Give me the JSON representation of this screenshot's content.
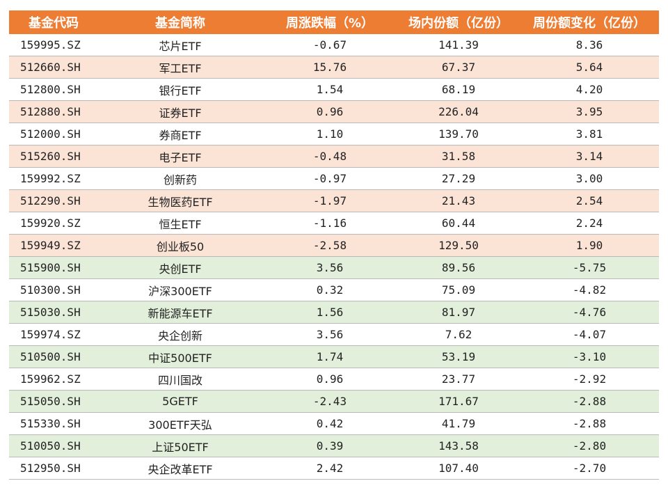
{
  "table": {
    "headers": [
      "基金代码",
      "基金简称",
      "周涨跌幅（%）",
      "场内份额（亿份）",
      "周份额变化（亿份）"
    ],
    "colors": {
      "header_bg": "#ee7d34",
      "inflow_row": "#fbe3d6",
      "outflow_row": "#e2efda"
    },
    "rows": [
      {
        "code": "159995.SZ",
        "name": "芯片ETF",
        "weekly_change": "-0.67",
        "shares": "141.39",
        "share_change": "8.36",
        "style": "plain"
      },
      {
        "code": "512660.SH",
        "name": "军工ETF",
        "weekly_change": "15.76",
        "shares": "67.37",
        "share_change": "5.64",
        "style": "up"
      },
      {
        "code": "512800.SH",
        "name": "银行ETF",
        "weekly_change": "1.54",
        "shares": "68.19",
        "share_change": "4.20",
        "style": "plain"
      },
      {
        "code": "512880.SH",
        "name": "证券ETF",
        "weekly_change": "0.96",
        "shares": "226.04",
        "share_change": "3.95",
        "style": "up"
      },
      {
        "code": "512000.SH",
        "name": "券商ETF",
        "weekly_change": "1.10",
        "shares": "139.70",
        "share_change": "3.81",
        "style": "plain"
      },
      {
        "code": "515260.SH",
        "name": "电子ETF",
        "weekly_change": "-0.48",
        "shares": "31.58",
        "share_change": "3.14",
        "style": "up"
      },
      {
        "code": "159992.SZ",
        "name": "创新药",
        "weekly_change": "-0.97",
        "shares": "27.29",
        "share_change": "3.00",
        "style": "plain"
      },
      {
        "code": "512290.SH",
        "name": "生物医药ETF",
        "weekly_change": "-1.97",
        "shares": "21.43",
        "share_change": "2.54",
        "style": "up"
      },
      {
        "code": "159920.SZ",
        "name": "恒生ETF",
        "weekly_change": "-1.16",
        "shares": "60.44",
        "share_change": "2.24",
        "style": "plain"
      },
      {
        "code": "159949.SZ",
        "name": "创业板50",
        "weekly_change": "-2.58",
        "shares": "129.50",
        "share_change": "1.90",
        "style": "up"
      },
      {
        "code": "515900.SH",
        "name": "央创ETF",
        "weekly_change": "3.56",
        "shares": "89.56",
        "share_change": "-5.75",
        "style": "down"
      },
      {
        "code": "510300.SH",
        "name": "沪深300ETF",
        "weekly_change": "0.32",
        "shares": "75.09",
        "share_change": "-4.82",
        "style": "plain"
      },
      {
        "code": "515030.SH",
        "name": "新能源车ETF",
        "weekly_change": "1.56",
        "shares": "81.97",
        "share_change": "-4.76",
        "style": "down"
      },
      {
        "code": "159974.SZ",
        "name": "央企创新",
        "weekly_change": "3.56",
        "shares": "7.62",
        "share_change": "-4.07",
        "style": "plain"
      },
      {
        "code": "510500.SH",
        "name": "中证500ETF",
        "weekly_change": "1.74",
        "shares": "53.19",
        "share_change": "-3.10",
        "style": "down"
      },
      {
        "code": "159962.SZ",
        "name": "四川国改",
        "weekly_change": "0.96",
        "shares": "23.77",
        "share_change": "-2.92",
        "style": "plain"
      },
      {
        "code": "515050.SH",
        "name": "5GETF",
        "weekly_change": "-2.43",
        "shares": "171.67",
        "share_change": "-2.88",
        "style": "down"
      },
      {
        "code": "515330.SH",
        "name": "300ETF天弘",
        "weekly_change": "0.42",
        "shares": "41.79",
        "share_change": "-2.88",
        "style": "plain"
      },
      {
        "code": "510050.SH",
        "name": "上证50ETF",
        "weekly_change": "0.39",
        "shares": "143.58",
        "share_change": "-2.80",
        "style": "down"
      },
      {
        "code": "512950.SH",
        "name": "央企改革ETF",
        "weekly_change": "2.42",
        "shares": "107.40",
        "share_change": "-2.70",
        "style": "plain"
      }
    ]
  }
}
